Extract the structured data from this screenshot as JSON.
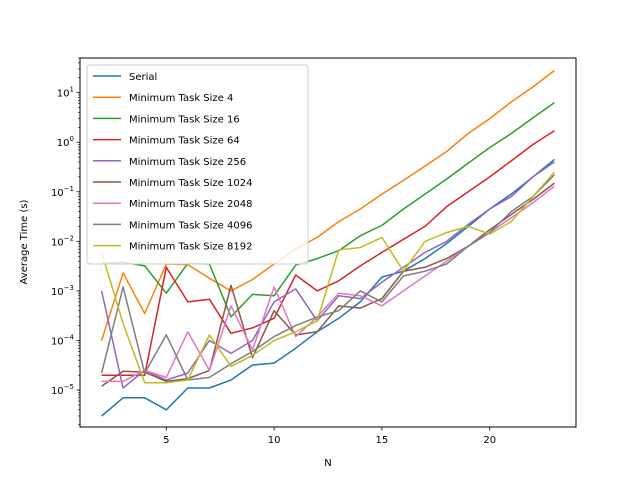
{
  "chart_data": {
    "type": "line",
    "xlabel": "N",
    "ylabel": "Average Time (s)",
    "yscale": "log",
    "xlim": [
      1.0,
      24.0
    ],
    "ylim": [
      1.8e-06,
      50
    ],
    "xticks": [
      5,
      10,
      15,
      20
    ],
    "yticks": [
      {
        "value": 1e-05,
        "base": "10",
        "exp": "−5"
      },
      {
        "value": 0.0001,
        "base": "10",
        "exp": "−4"
      },
      {
        "value": 0.001,
        "base": "10",
        "exp": "−3"
      },
      {
        "value": 0.01,
        "base": "10",
        "exp": "−2"
      },
      {
        "value": 0.1,
        "base": "10",
        "exp": "−1"
      },
      {
        "value": 1,
        "base": "10",
        "exp": "0"
      },
      {
        "value": 10,
        "base": "10",
        "exp": "1"
      }
    ],
    "grid": false,
    "legend_position": "upper-left",
    "x": [
      2,
      3,
      4,
      5,
      6,
      7,
      8,
      9,
      10,
      11,
      12,
      13,
      14,
      15,
      16,
      17,
      18,
      19,
      20,
      21,
      22,
      23
    ],
    "series": [
      {
        "name": "Serial",
        "color": "#1f77b4",
        "values": [
          3e-06,
          7e-06,
          7e-06,
          4e-06,
          1.1e-05,
          1.1e-05,
          1.6e-05,
          3.2e-05,
          3.5e-05,
          7e-05,
          0.00015,
          0.00028,
          0.0006,
          0.0019,
          0.0025,
          0.0045,
          0.009,
          0.02,
          0.045,
          0.09,
          0.2,
          0.45
        ]
      },
      {
        "name": "Minimum Task Size 4",
        "color": "#ff7f0e",
        "values": [
          0.0001,
          0.0023,
          0.00035,
          0.0035,
          0.0034,
          0.0018,
          0.001,
          0.0017,
          0.0035,
          0.007,
          0.012,
          0.025,
          0.045,
          0.09,
          0.17,
          0.33,
          0.65,
          1.5,
          3.0,
          6.5,
          13.0,
          28.0
        ]
      },
      {
        "name": "Minimum Task Size 16",
        "color": "#2ca02c",
        "values": [
          0.0036,
          0.0038,
          0.0032,
          0.0009,
          0.0036,
          0.0035,
          0.0003,
          0.00085,
          0.0008,
          0.0033,
          0.0045,
          0.0065,
          0.013,
          0.021,
          0.045,
          0.09,
          0.18,
          0.38,
          0.78,
          1.5,
          3.1,
          6.3
        ]
      },
      {
        "name": "Minimum Task Size 64",
        "color": "#d62728",
        "values": [
          2e-05,
          2e-05,
          2e-05,
          0.003,
          0.0006,
          0.00068,
          0.00014,
          0.00018,
          0.00028,
          0.0021,
          0.001,
          0.0016,
          0.0032,
          0.006,
          0.011,
          0.02,
          0.05,
          0.1,
          0.2,
          0.42,
          0.9,
          1.7
        ]
      },
      {
        "name": "Minimum Task Size 256",
        "color": "#9467bd",
        "values": [
          0.001,
          1.1e-05,
          2.5e-05,
          1.6e-05,
          2.2e-05,
          0.0001,
          5.5e-05,
          0.0001,
          0.0006,
          0.0011,
          0.00025,
          0.0008,
          0.0007,
          0.0015,
          0.003,
          0.006,
          0.01,
          0.022,
          0.045,
          0.08,
          0.2,
          0.4
        ]
      },
      {
        "name": "Minimum Task Size 1024",
        "color": "#8c564b",
        "values": [
          1.2e-05,
          2.4e-05,
          2.3e-05,
          1.5e-05,
          1.7e-05,
          2.5e-05,
          0.0013,
          4.5e-05,
          0.0004,
          0.00013,
          0.00015,
          0.0005,
          0.00045,
          0.0007,
          0.0025,
          0.003,
          0.0045,
          0.008,
          0.017,
          0.035,
          0.07,
          0.15
        ]
      },
      {
        "name": "Minimum Task Size 2048",
        "color": "#e377c2",
        "values": [
          1.5e-05,
          1.5e-05,
          2.5e-05,
          1.8e-05,
          0.00015,
          2.5e-05,
          0.0005,
          6.5e-05,
          0.0012,
          0.00012,
          0.0003,
          0.0009,
          0.0008,
          0.0005,
          0.001,
          0.002,
          0.004,
          0.008,
          0.015,
          0.03,
          0.06,
          0.13
        ]
      },
      {
        "name": "Minimum Task Size 4096",
        "color": "#7f7f7f",
        "values": [
          2.2e-05,
          0.0012,
          2.2e-05,
          0.00013,
          1.6e-05,
          1.8e-05,
          3.4e-05,
          6e-05,
          0.00012,
          0.0002,
          0.0003,
          0.0004,
          0.001,
          0.0006,
          0.002,
          0.0025,
          0.0035,
          0.008,
          0.015,
          0.04,
          0.08,
          0.22
        ]
      },
      {
        "name": "Minimum Task Size 8192",
        "color": "#bcbd22",
        "values": [
          0.006,
          0.00022,
          1.4e-05,
          1.4e-05,
          1.6e-05,
          0.00013,
          3e-05,
          5e-05,
          0.0001,
          0.00015,
          0.00025,
          0.0068,
          0.0075,
          0.012,
          0.0025,
          0.01,
          0.015,
          0.02,
          0.014,
          0.025,
          0.08,
          0.25
        ]
      }
    ]
  }
}
